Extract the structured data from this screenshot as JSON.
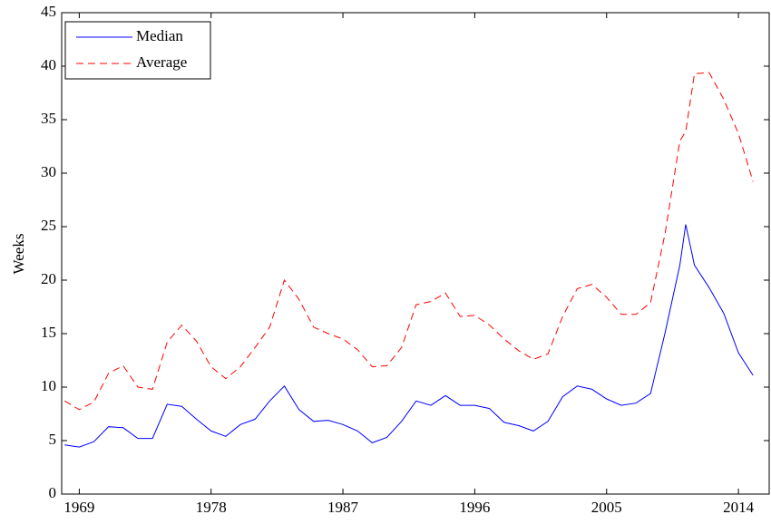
{
  "chart_data": {
    "type": "line",
    "ylabel": "Weeks",
    "x": [
      1968,
      1969,
      1970,
      1971,
      1972,
      1973,
      1974,
      1975,
      1976,
      1977,
      1978,
      1979,
      1980,
      1981,
      1982,
      1983,
      1984,
      1985,
      1986,
      1987,
      1988,
      1989,
      1990,
      1991,
      1992,
      1993,
      1994,
      1995,
      1996,
      1997,
      1998,
      1999,
      2000,
      2001,
      2002,
      2003,
      2004,
      2005,
      2006,
      2007,
      2008,
      2009,
      2010,
      2010.4,
      2011,
      2012,
      2013,
      2014,
      2015
    ],
    "series": [
      {
        "name": "Median",
        "color": "#0000ff",
        "dash": false,
        "values": [
          4.6,
          4.4,
          4.9,
          6.3,
          6.2,
          5.2,
          5.2,
          8.4,
          8.2,
          7.0,
          5.9,
          5.4,
          6.5,
          7.0,
          8.7,
          10.1,
          7.9,
          6.8,
          6.9,
          6.5,
          5.9,
          4.8,
          5.3,
          6.8,
          8.7,
          8.3,
          9.2,
          8.3,
          8.3,
          8.0,
          6.7,
          6.4,
          5.9,
          6.8,
          9.1,
          10.1,
          9.8,
          8.9,
          8.3,
          8.5,
          9.4,
          15.1,
          21.4,
          25.2,
          21.4,
          19.3,
          16.9,
          13.2,
          11.1
        ]
      },
      {
        "name": "Average",
        "color": "#ff0000",
        "dash": true,
        "values": [
          8.7,
          7.9,
          8.6,
          11.3,
          12.0,
          10.0,
          9.8,
          14.2,
          15.8,
          14.3,
          11.9,
          10.8,
          11.9,
          13.7,
          15.6,
          20.0,
          18.2,
          15.6,
          15.0,
          14.5,
          13.5,
          11.9,
          12.0,
          13.7,
          17.7,
          18.0,
          18.8,
          16.6,
          16.7,
          15.8,
          14.5,
          13.4,
          12.6,
          13.1,
          16.6,
          19.2,
          19.6,
          18.4,
          16.8,
          16.8,
          17.9,
          24.4,
          33.0,
          33.9,
          39.3,
          39.4,
          36.9,
          33.7,
          29.2
        ]
      }
    ],
    "xlim": [
      1967.8,
      2016.1
    ],
    "xticks": [
      1969,
      1978,
      1987,
      1996,
      2005,
      2014
    ],
    "ylim": [
      0,
      45
    ],
    "yticks": [
      0,
      5,
      10,
      15,
      20,
      25,
      30,
      35,
      40,
      45
    ],
    "legend": "upper left",
    "grid": false
  }
}
